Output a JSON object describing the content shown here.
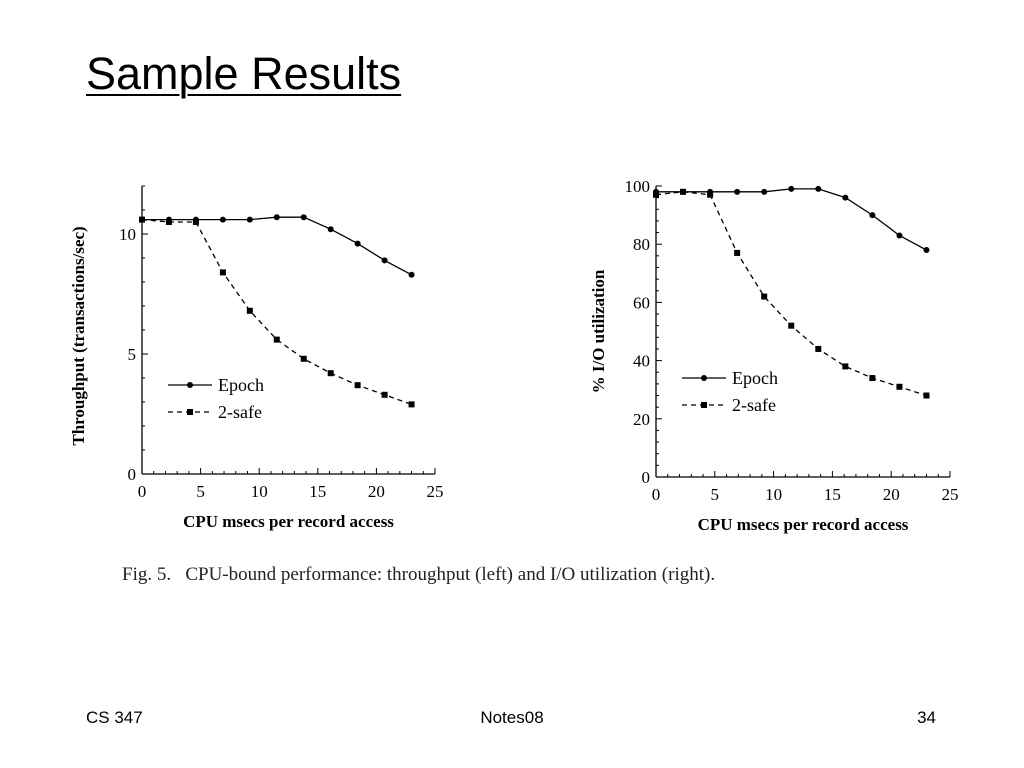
{
  "slide": {
    "title": "Sample Results",
    "footer_left": "CS 347",
    "footer_center": "Notes08",
    "footer_right": "34"
  },
  "figure_caption": "Fig. 5.   CPU-bound performance: throughput (left) and I/O utilization (right).",
  "chart_data": [
    {
      "type": "line",
      "xlabel": "CPU msecs per record access",
      "ylabel": "Throughput (transactions/sec)",
      "xlim": [
        0,
        25
      ],
      "ylim": [
        0,
        12
      ],
      "xticks": [
        0,
        5,
        10,
        15,
        20,
        25
      ],
      "yticks": [
        0,
        5,
        10
      ],
      "grid": false,
      "legend_position": "center-left",
      "series": [
        {
          "name": "Epoch",
          "style": "solid",
          "marker": "circle",
          "x": [
            0,
            2.3,
            4.6,
            6.9,
            9.2,
            11.5,
            13.8,
            16.1,
            18.4,
            20.7,
            23
          ],
          "y": [
            10.6,
            10.6,
            10.6,
            10.6,
            10.6,
            10.7,
            10.7,
            10.2,
            9.6,
            8.9,
            8.3
          ]
        },
        {
          "name": "2-safe",
          "style": "dashed",
          "marker": "square",
          "x": [
            0,
            2.3,
            4.6,
            6.9,
            9.2,
            11.5,
            13.8,
            16.1,
            18.4,
            20.7,
            23
          ],
          "y": [
            10.6,
            10.5,
            10.5,
            8.4,
            6.8,
            5.6,
            4.8,
            4.2,
            3.7,
            3.3,
            2.9
          ]
        }
      ]
    },
    {
      "type": "line",
      "xlabel": "CPU msecs per record access",
      "ylabel": "% I/O utilization",
      "xlim": [
        0,
        25
      ],
      "ylim": [
        0,
        100
      ],
      "xticks": [
        0,
        5,
        10,
        15,
        20,
        25
      ],
      "yticks": [
        0,
        20,
        40,
        60,
        80,
        100
      ],
      "grid": false,
      "legend_position": "center-left",
      "series": [
        {
          "name": "Epoch",
          "style": "solid",
          "marker": "circle",
          "x": [
            0,
            2.3,
            4.6,
            6.9,
            9.2,
            11.5,
            13.8,
            16.1,
            18.4,
            20.7,
            23
          ],
          "y": [
            98,
            98,
            98,
            98,
            98,
            99,
            99,
            96,
            90,
            83,
            78
          ]
        },
        {
          "name": "2-safe",
          "style": "dashed",
          "marker": "square",
          "x": [
            0,
            2.3,
            4.6,
            6.9,
            9.2,
            11.5,
            13.8,
            16.1,
            18.4,
            20.7,
            23
          ],
          "y": [
            97,
            98,
            97,
            77,
            62,
            52,
            44,
            38,
            34,
            31,
            28
          ]
        }
      ]
    }
  ]
}
